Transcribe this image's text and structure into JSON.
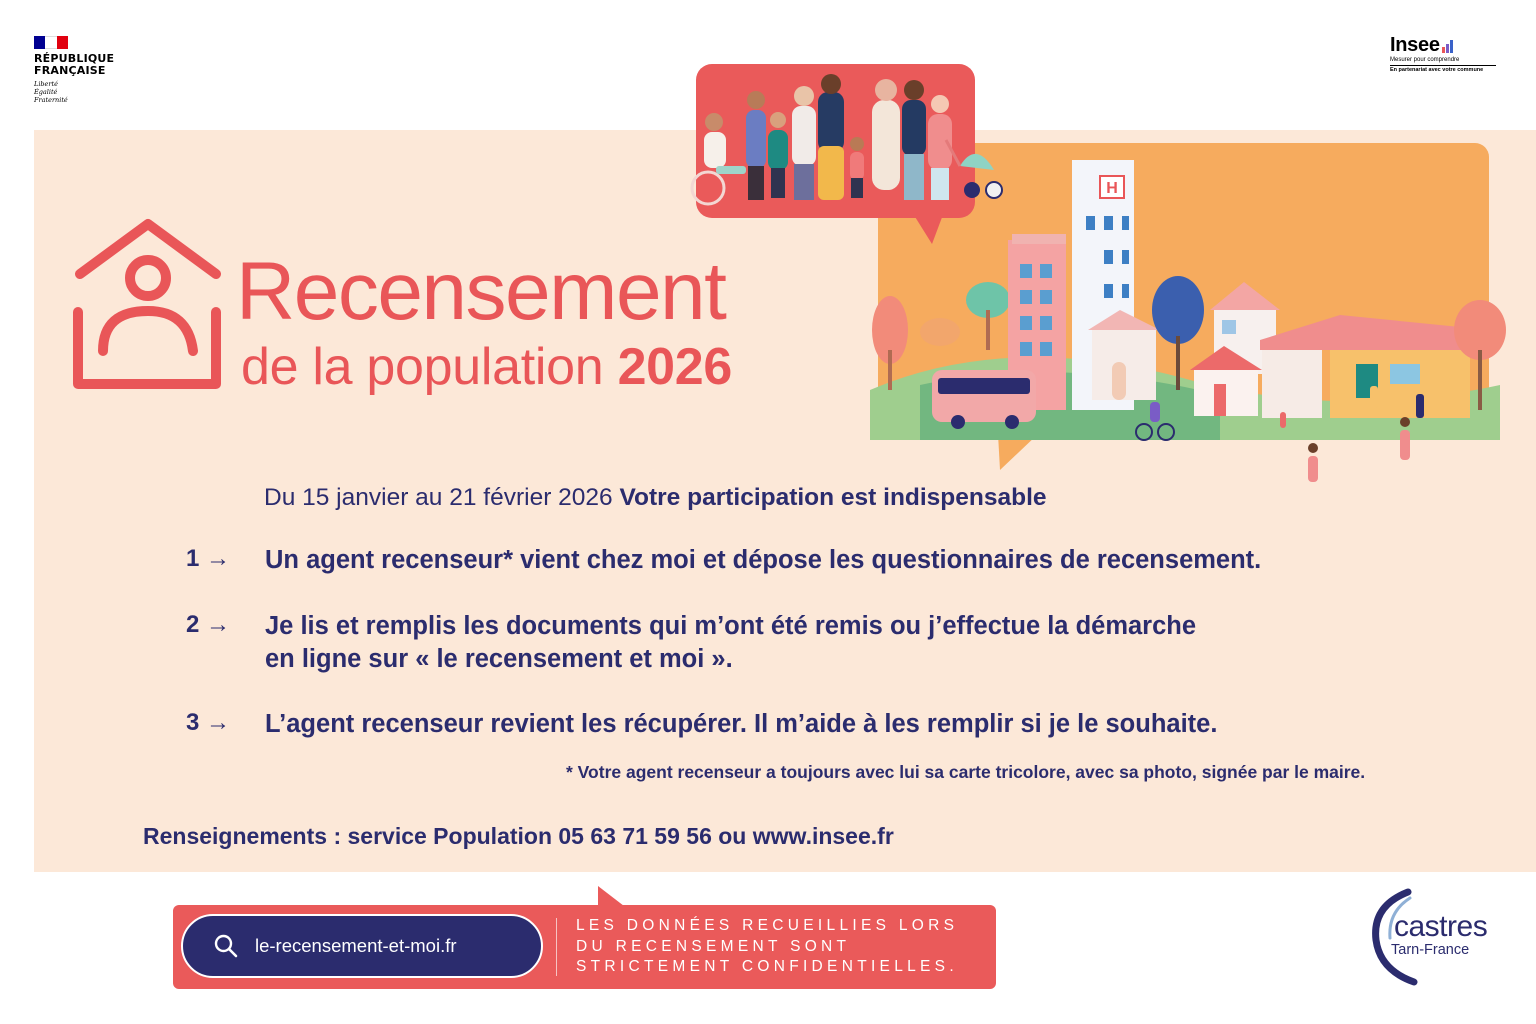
{
  "header": {
    "republique": {
      "line1": "RÉPUBLIQUE",
      "line2": "FRANÇAISE",
      "motto1": "Liberté",
      "motto2": "Égalité",
      "motto3": "Fraternité"
    },
    "insee": {
      "name": "Insee",
      "tagline": "Mesurer pour comprendre",
      "partner": "En partenariat avec votre commune"
    }
  },
  "title": {
    "main": "Recensement",
    "sub": "de la population",
    "year": "2026"
  },
  "dates": {
    "period": "Du 15 janvier au 21 février 2026",
    "emphasis": "Votre participation est indispensable"
  },
  "steps": [
    {
      "number": "1",
      "arrow": "→",
      "lines": [
        "Un agent recenseur* vient chez moi et dépose les questionnaires de recensement."
      ]
    },
    {
      "number": "2",
      "arrow": "→",
      "lines": [
        "Je lis et remplis les documents qui m’ont été remis ou j’effectue la démarche",
        "en ligne sur « le recensement et moi »."
      ]
    },
    {
      "number": "3",
      "arrow": "→",
      "lines": [
        "L’agent recenseur revient les récupérer. Il m’aide à les remplir si je le souhaite."
      ]
    }
  ],
  "footnote": "* Votre agent recenseur a toujours avec lui sa carte tricolore, avec sa photo, signée par le maire.",
  "info": "Renseignements : service Population 05 63 71 59 56 ou www.insee.fr",
  "banner": {
    "search_url": "le-recensement-et-moi.fr",
    "confidential": [
      "LES DONNÉES RECUEILLIES LORS",
      "DU RECENSEMENT SONT",
      "STRICTEMENT CONFIDENTIELLES."
    ]
  },
  "castres": {
    "name": "castres",
    "sub": "Tarn-France"
  },
  "illustration": {
    "hospital_sign": "H"
  },
  "colors": {
    "coral": "#e95658",
    "navy": "#2b2c6e",
    "beige": "#fce8d8",
    "orange": "#f6ab5e",
    "flag_blue": "#000091",
    "flag_red": "#e1000f"
  }
}
